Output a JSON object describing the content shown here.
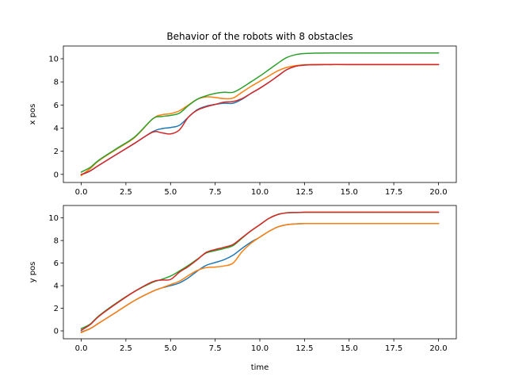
{
  "chart_data": [
    {
      "type": "line",
      "title": "Behavior of the robots with 8 obstacles",
      "xlabel": "",
      "ylabel": "x pos",
      "xlim": [
        -1.0,
        21.0
      ],
      "ylim": [
        -0.7,
        11.1
      ],
      "xticks": [
        "0.0",
        "2.5",
        "5.0",
        "7.5",
        "10.0",
        "12.5",
        "15.0",
        "17.5",
        "20.0"
      ],
      "yticks": [
        "0",
        "2",
        "4",
        "6",
        "8",
        "10"
      ],
      "grid": false,
      "series": [
        {
          "color": "#1f77b4",
          "x": [
            0,
            0.5,
            1,
            2,
            3,
            4,
            4.5,
            5,
            5.5,
            6,
            6.5,
            7,
            7.5,
            8,
            8.5,
            9,
            9.5,
            10,
            10.5,
            11,
            11.5,
            12,
            12.5,
            13,
            14,
            15,
            20
          ],
          "y": [
            -0.05,
            0.3,
            0.8,
            1.75,
            2.7,
            3.7,
            3.95,
            4.05,
            4.25,
            4.95,
            5.6,
            5.9,
            6.05,
            6.15,
            6.15,
            6.5,
            7.0,
            7.45,
            7.95,
            8.5,
            9.05,
            9.35,
            9.45,
            9.48,
            9.5,
            9.5,
            9.5
          ]
        },
        {
          "color": "#ff7f0e",
          "x": [
            0,
            0.5,
            1,
            2,
            3,
            4,
            4.5,
            5,
            5.5,
            6,
            6.5,
            7,
            7.5,
            8,
            8.5,
            9,
            9.5,
            10,
            10.5,
            11,
            11.5,
            12,
            12.5,
            13,
            14,
            15,
            20
          ],
          "y": [
            -0.1,
            0.5,
            1.2,
            2.2,
            3.2,
            4.8,
            5.15,
            5.25,
            5.5,
            6.0,
            6.5,
            6.7,
            6.65,
            6.55,
            6.6,
            7.1,
            7.6,
            8.05,
            8.5,
            8.95,
            9.25,
            9.4,
            9.48,
            9.5,
            9.5,
            9.5,
            9.5
          ]
        },
        {
          "color": "#2ca02c",
          "x": [
            0,
            0.5,
            1,
            2,
            3,
            4,
            4.5,
            5,
            5.5,
            6,
            6.5,
            7,
            7.5,
            8,
            8.5,
            9,
            9.5,
            10,
            10.5,
            11,
            11.5,
            12,
            12.5,
            13,
            14,
            15,
            20
          ],
          "y": [
            0.2,
            0.6,
            1.25,
            2.25,
            3.25,
            4.8,
            5.0,
            5.1,
            5.3,
            5.95,
            6.5,
            6.8,
            7.0,
            7.1,
            7.1,
            7.5,
            8.0,
            8.5,
            9.05,
            9.6,
            10.1,
            10.35,
            10.45,
            10.48,
            10.5,
            10.5,
            10.5
          ]
        },
        {
          "color": "#d62728",
          "x": [
            0,
            0.5,
            1,
            2,
            3,
            4,
            4.5,
            5,
            5.5,
            6,
            6.5,
            7,
            7.5,
            8,
            8.5,
            9,
            9.5,
            10,
            10.5,
            11,
            11.5,
            12,
            12.5,
            13,
            14,
            15,
            20
          ],
          "y": [
            0.0,
            0.3,
            0.8,
            1.75,
            2.7,
            3.65,
            3.6,
            3.5,
            3.85,
            4.95,
            5.55,
            5.85,
            6.05,
            6.25,
            6.3,
            6.55,
            7.0,
            7.45,
            7.95,
            8.5,
            9.05,
            9.35,
            9.45,
            9.48,
            9.5,
            9.5,
            9.5
          ]
        }
      ]
    },
    {
      "type": "line",
      "title": "",
      "xlabel": "time",
      "ylabel": "y pos",
      "xlim": [
        -1.0,
        21.0
      ],
      "ylim": [
        -0.7,
        11.1
      ],
      "xticks": [
        "0.0",
        "2.5",
        "5.0",
        "7.5",
        "10.0",
        "12.5",
        "15.0",
        "17.5",
        "20.0"
      ],
      "yticks": [
        "0",
        "2",
        "4",
        "6",
        "8",
        "10"
      ],
      "grid": false,
      "series": [
        {
          "color": "#1f77b4",
          "x": [
            0,
            0.5,
            1,
            2,
            3,
            4,
            4.5,
            5,
            5.5,
            6,
            6.5,
            7,
            7.5,
            8,
            8.5,
            9,
            9.5,
            10,
            10.5,
            11,
            11.5,
            12,
            12.5,
            13,
            14,
            15,
            20
          ],
          "y": [
            -0.1,
            0.2,
            0.7,
            1.7,
            2.7,
            3.5,
            3.8,
            4.0,
            4.25,
            4.7,
            5.3,
            5.8,
            6.05,
            6.3,
            6.7,
            7.3,
            7.85,
            8.3,
            8.8,
            9.2,
            9.4,
            9.47,
            9.5,
            9.5,
            9.5,
            9.5,
            9.5
          ]
        },
        {
          "color": "#ff7f0e",
          "x": [
            0,
            0.5,
            1,
            2,
            3,
            4,
            4.5,
            5,
            5.5,
            6,
            6.5,
            7,
            7.5,
            8,
            8.5,
            9,
            9.5,
            10,
            10.5,
            11,
            11.5,
            12,
            12.5,
            13,
            14,
            15,
            20
          ],
          "y": [
            -0.15,
            0.2,
            0.7,
            1.7,
            2.7,
            3.5,
            3.8,
            4.1,
            4.4,
            4.9,
            5.35,
            5.6,
            5.65,
            5.75,
            6.0,
            7.0,
            7.75,
            8.3,
            8.8,
            9.2,
            9.4,
            9.47,
            9.5,
            9.5,
            9.5,
            9.5,
            9.5
          ]
        },
        {
          "color": "#2ca02c",
          "x": [
            0,
            0.5,
            1,
            2,
            3,
            4,
            4.5,
            5,
            5.5,
            6,
            6.5,
            7,
            7.5,
            8,
            8.5,
            9,
            9.5,
            10,
            10.5,
            11,
            11.5,
            12,
            12.5,
            13,
            14,
            15,
            20
          ],
          "y": [
            0.2,
            0.6,
            1.35,
            2.5,
            3.5,
            4.3,
            4.55,
            4.85,
            5.3,
            5.8,
            6.35,
            6.9,
            7.1,
            7.3,
            7.55,
            8.2,
            8.85,
            9.4,
            9.95,
            10.3,
            10.45,
            10.48,
            10.5,
            10.5,
            10.5,
            10.5,
            10.5
          ]
        },
        {
          "color": "#d62728",
          "x": [
            0,
            0.5,
            1,
            2,
            3,
            4,
            4.5,
            5,
            5.5,
            6,
            6.5,
            7,
            7.5,
            8,
            8.5,
            9,
            9.5,
            10,
            10.5,
            11,
            11.5,
            12,
            12.5,
            13,
            14,
            15,
            20
          ],
          "y": [
            0.05,
            0.55,
            1.3,
            2.45,
            3.5,
            4.35,
            4.5,
            4.55,
            5.2,
            5.7,
            6.3,
            6.95,
            7.2,
            7.4,
            7.65,
            8.25,
            8.85,
            9.4,
            9.95,
            10.3,
            10.45,
            10.48,
            10.5,
            10.5,
            10.5,
            10.5,
            10.5
          ]
        }
      ]
    }
  ]
}
